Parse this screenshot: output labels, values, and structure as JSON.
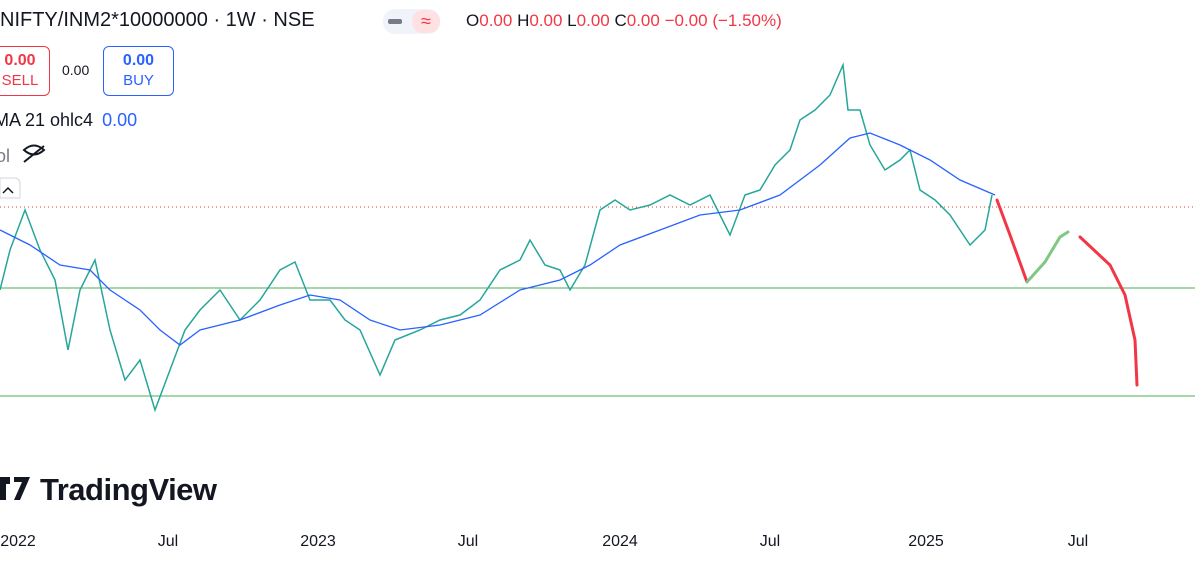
{
  "header": {
    "symbol": "NIFTY/INM2*10000000 · 1W · NSE",
    "ohlc": [
      {
        "key": "O",
        "value": "0.00"
      },
      {
        "key": "H",
        "value": "0.00"
      },
      {
        "key": "L",
        "value": "0.00"
      },
      {
        "key": "C",
        "value": "0.00"
      }
    ],
    "change": "−0.00 (−1.50%)"
  },
  "trade": {
    "sell_price": "0.00",
    "sell": "SELL",
    "spread": "0.00",
    "buy_price": "0.00",
    "buy": "BUY"
  },
  "indicators": [
    {
      "name": "MA 21 ohlc4",
      "value": "0.00"
    },
    {
      "name": "ol"
    }
  ],
  "logo": "TradingView",
  "time_axis": [
    "2022",
    "Jul",
    "2023",
    "Jul",
    "2024",
    "Jul",
    "2025",
    "Jul"
  ]
}
